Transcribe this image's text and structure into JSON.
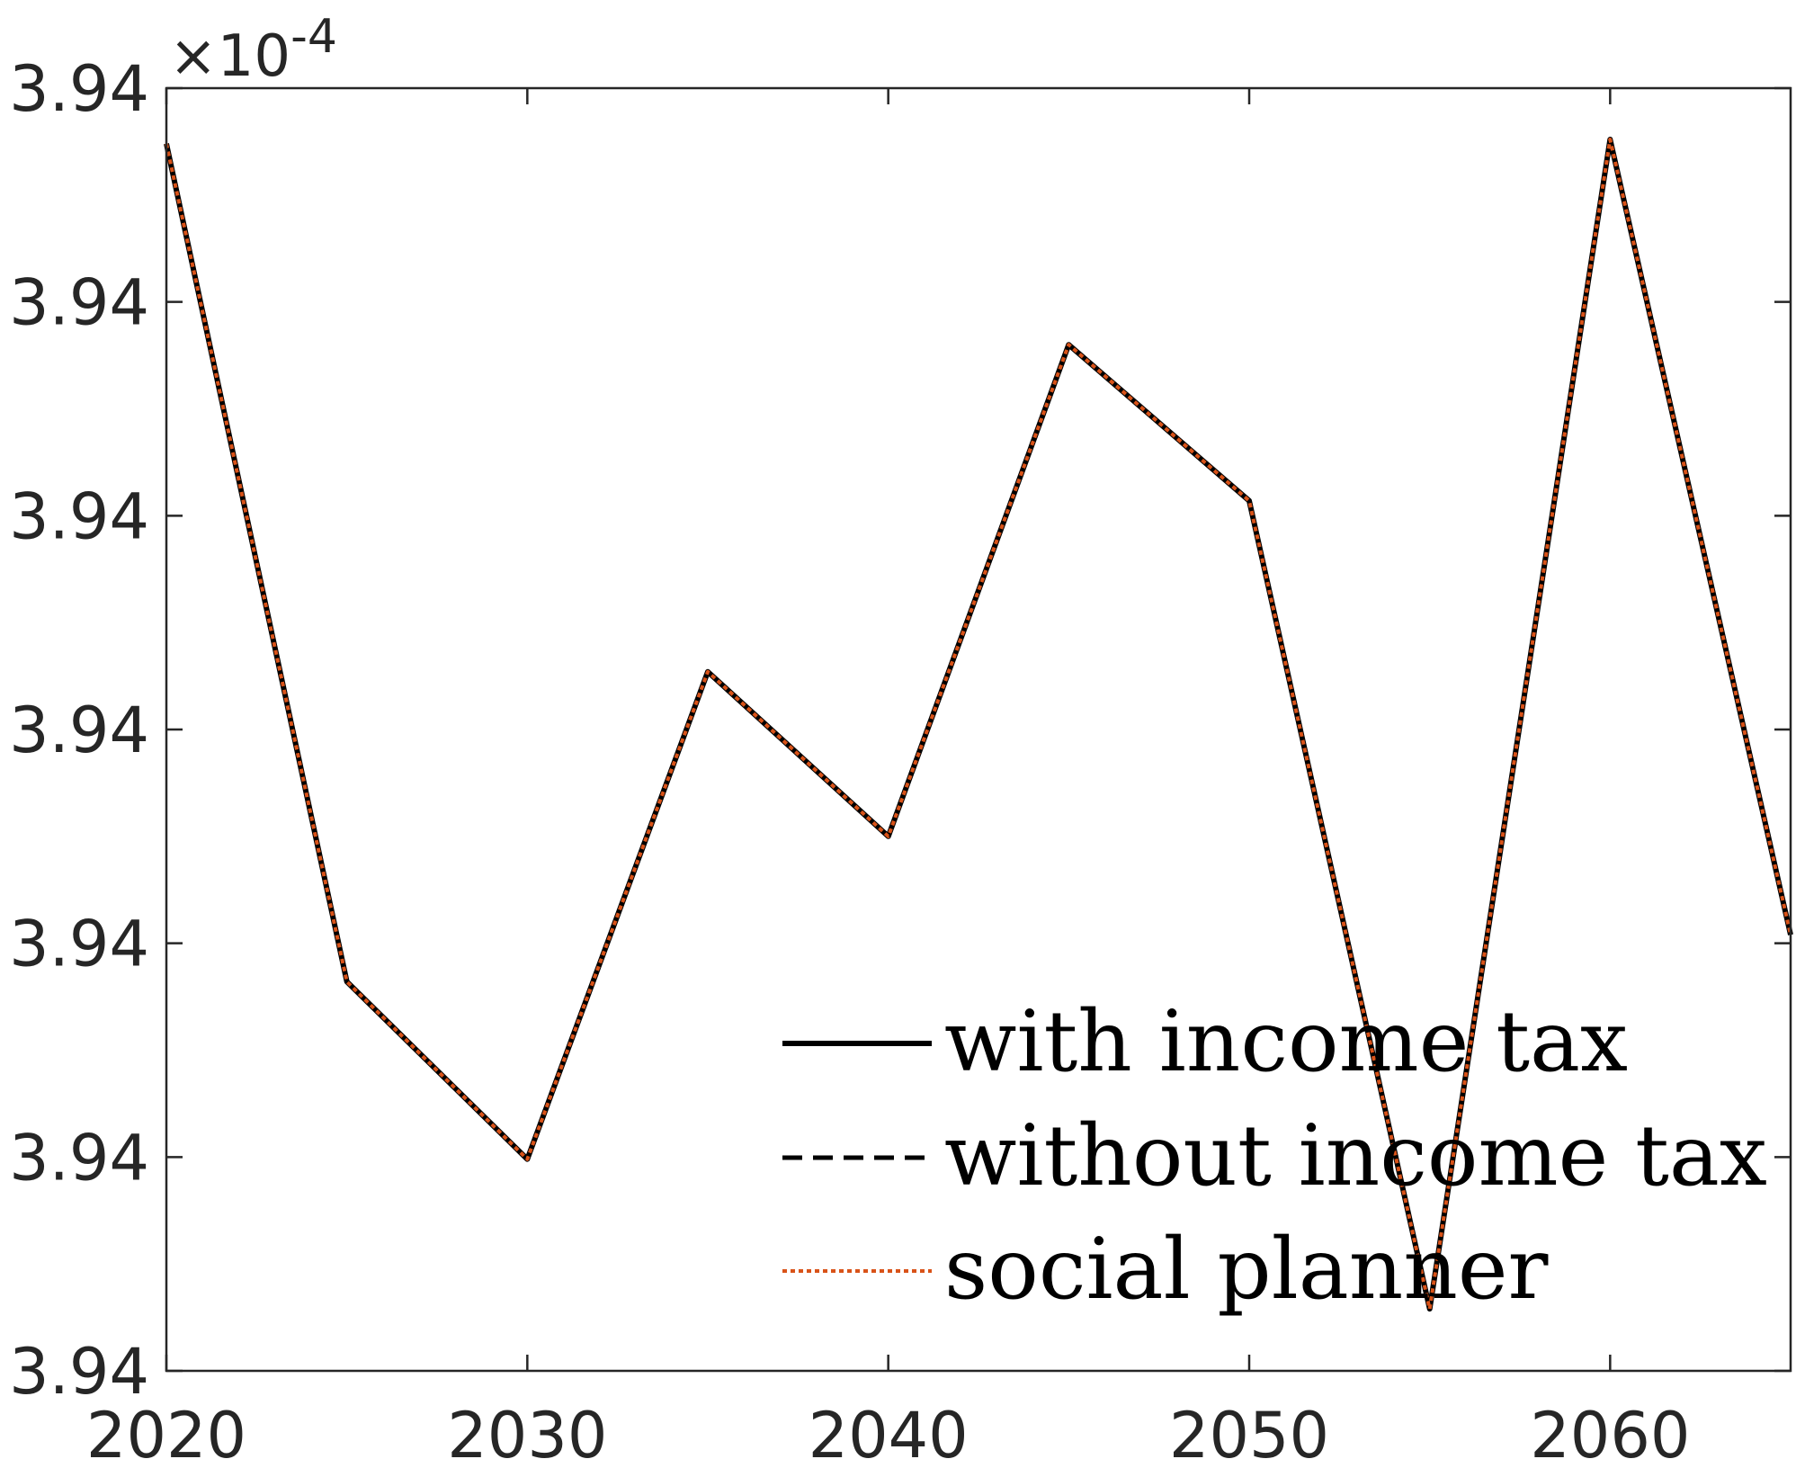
{
  "chart_data": {
    "type": "line",
    "title": "",
    "xlabel": "",
    "ylabel": "",
    "exponent_label": "×10",
    "exponent_power": "-4",
    "xlim": [
      2020,
      2065
    ],
    "x_ticks": [
      "2020",
      "2030",
      "2040",
      "2050",
      "2060"
    ],
    "y_ticks": [
      "3.94",
      "3.94",
      "3.94",
      "3.94",
      "3.94",
      "3.94",
      "3.94"
    ],
    "ylim": [
      0,
      6
    ],
    "y_units_note": "",
    "grid": false,
    "legend_position": "bottom-right",
    "x": [
      2020,
      2025,
      2030,
      2035,
      2040,
      2045,
      2050,
      2055,
      2060,
      2065
    ],
    "series": [
      {
        "name": "with income tax",
        "style": "solid",
        "color": "#000000",
        "values": [
          5.74,
          1.82,
          0.99,
          3.27,
          2.5,
          4.8,
          4.07,
          0.29,
          5.76,
          2.04
        ]
      },
      {
        "name": "without income tax",
        "style": "dashed",
        "color": "#000000",
        "values": [
          5.74,
          1.82,
          0.99,
          3.27,
          2.5,
          4.8,
          4.07,
          0.29,
          5.76,
          2.04
        ]
      },
      {
        "name": "social planner",
        "style": "dotted",
        "color": "#d95319",
        "values": [
          5.74,
          1.82,
          0.99,
          3.27,
          2.5,
          4.8,
          4.07,
          0.29,
          5.76,
          2.04
        ]
      }
    ]
  }
}
